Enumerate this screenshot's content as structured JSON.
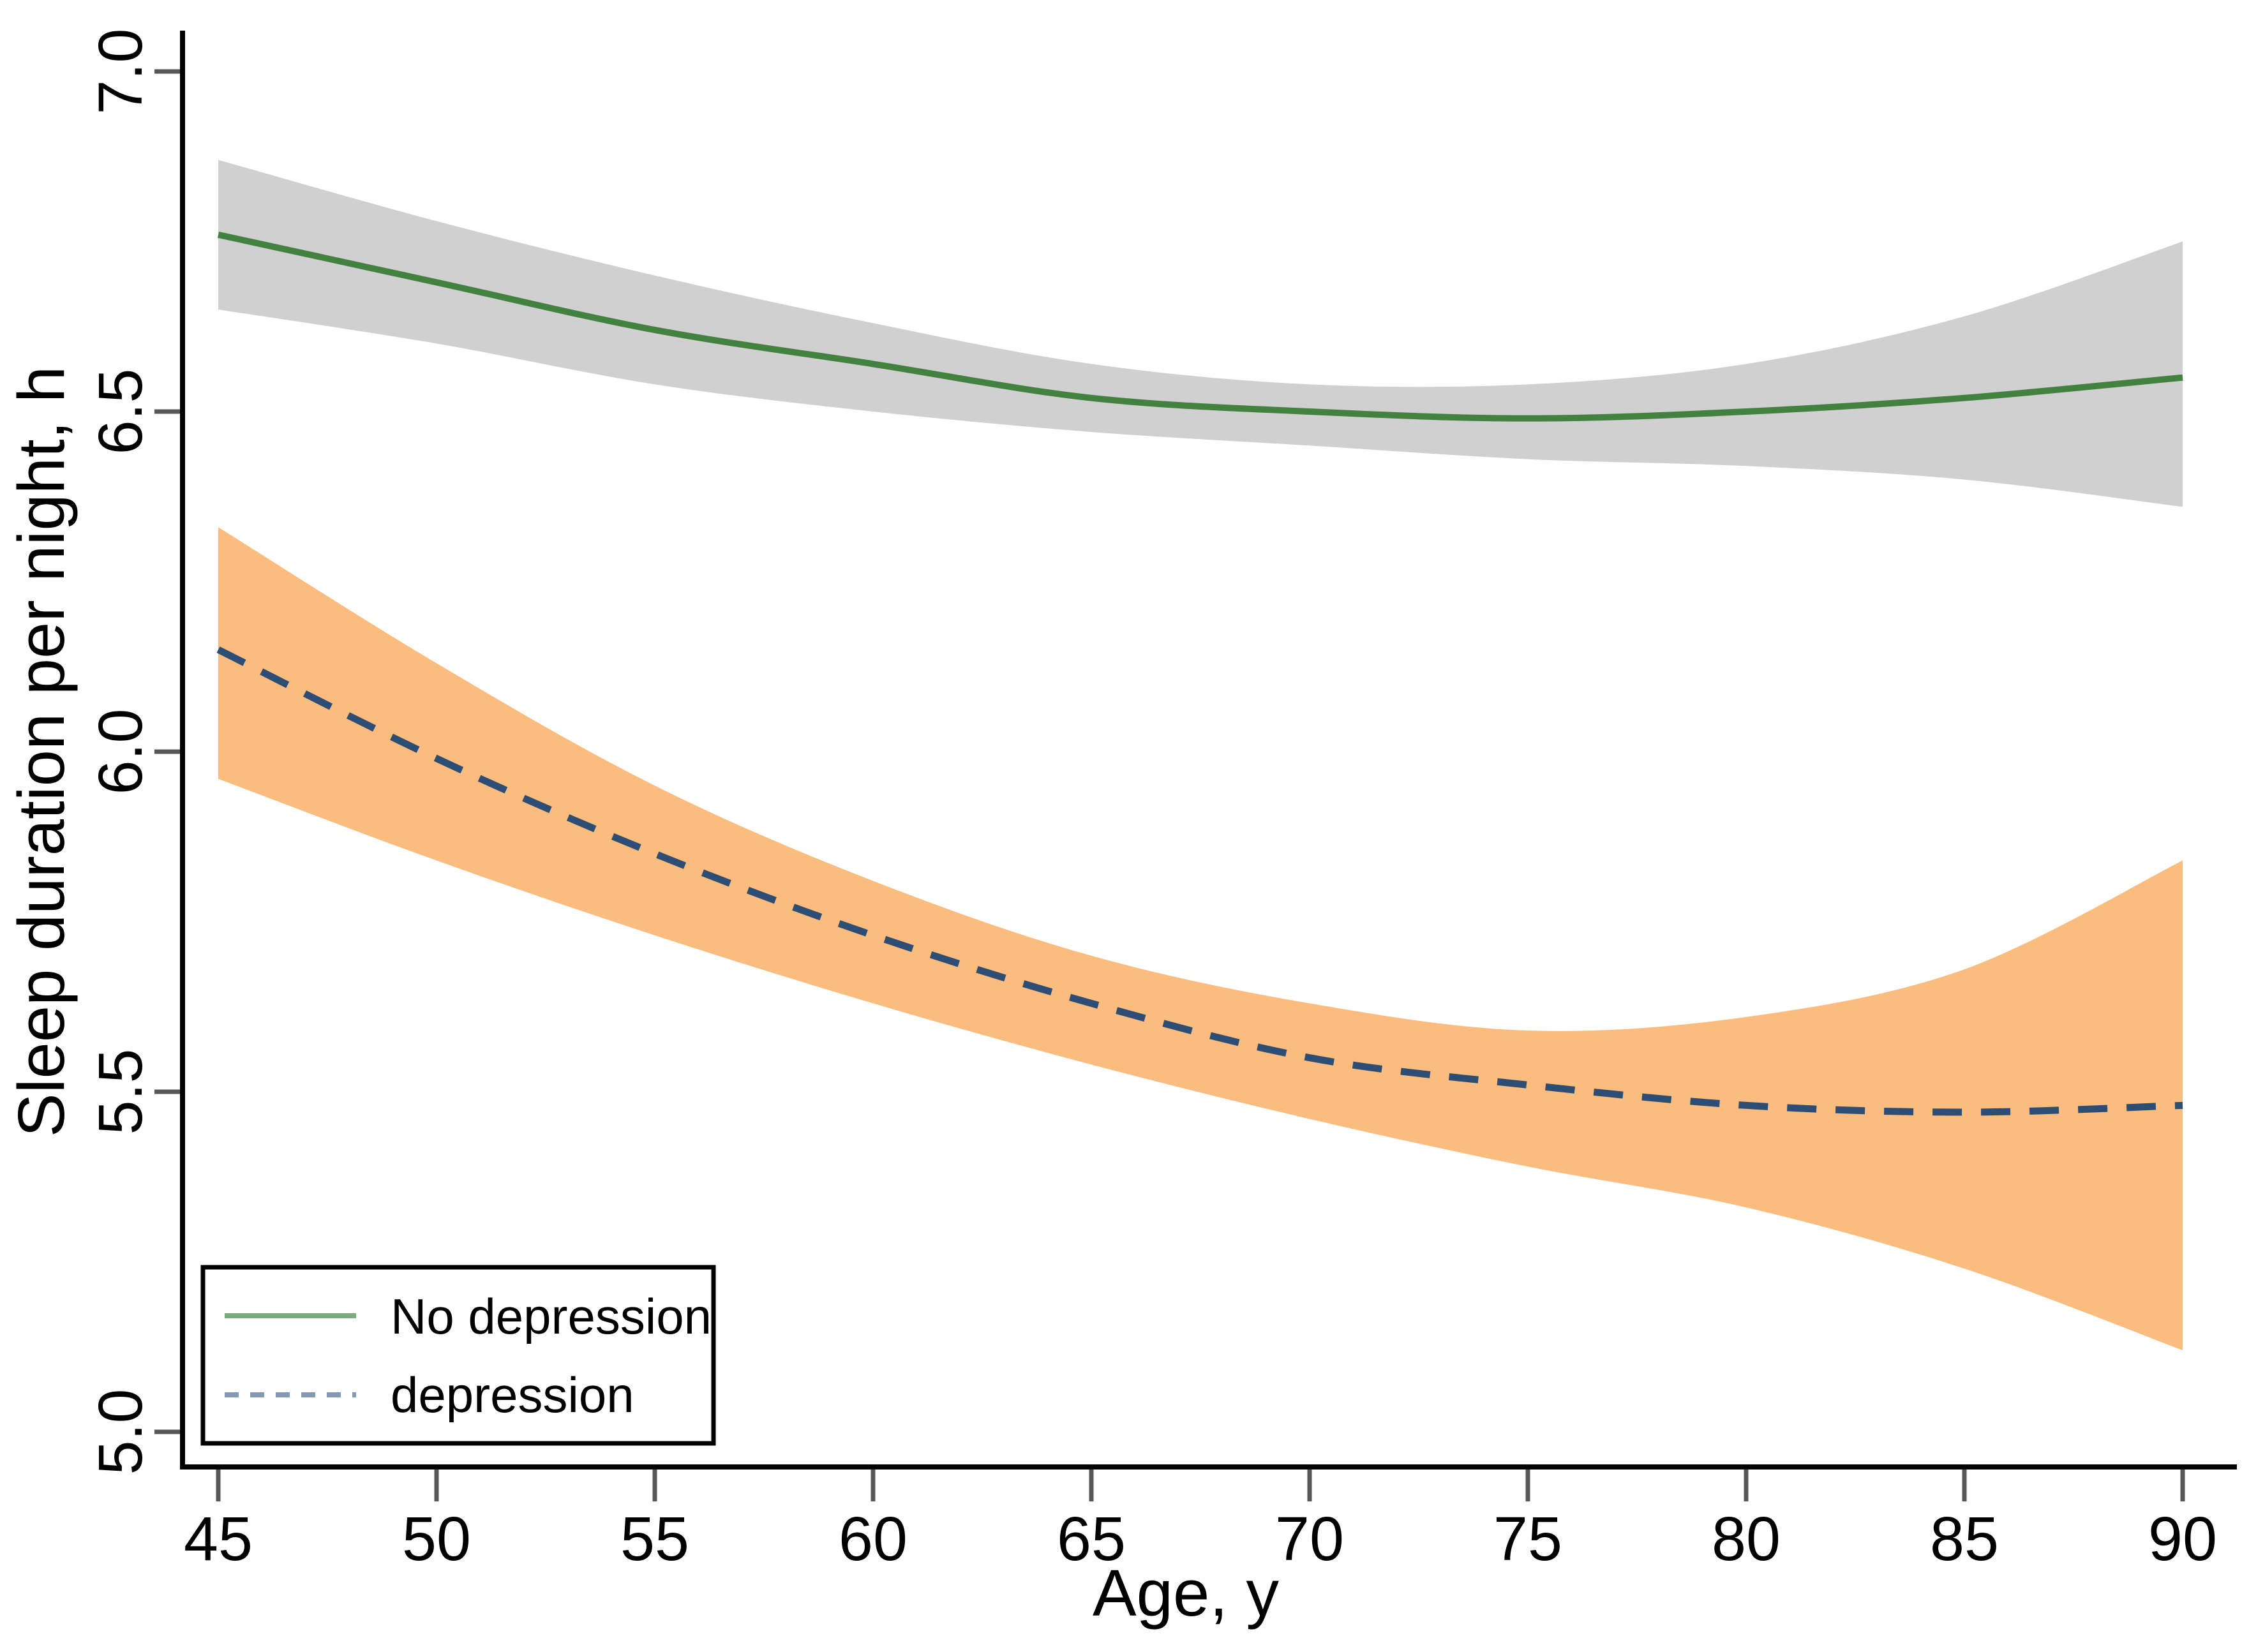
{
  "figure": {
    "background": "#ffffff",
    "axis_line_color": "#000000",
    "tick_mark_color": "#585858",
    "text_color": "#000000"
  },
  "chart_data": {
    "type": "line",
    "title": "",
    "xlabel": "Age, y",
    "ylabel": "Sleep duration per night, h",
    "xlim": [
      45,
      90
    ],
    "ylim": [
      5.0,
      7.0
    ],
    "grid": false,
    "legend_position": "bottom-left",
    "x": [
      45,
      50,
      55,
      60,
      65,
      70,
      75,
      80,
      85,
      90
    ],
    "x_tick_values": [
      45,
      50,
      55,
      60,
      65,
      70,
      75,
      80,
      85,
      90
    ],
    "x_tick_labels": [
      "45",
      "50",
      "55",
      "60",
      "65",
      "70",
      "75",
      "80",
      "85",
      "90"
    ],
    "y_tick_values": [
      7.0,
      6.5,
      6.0,
      5.5,
      5.0
    ],
    "y_tick_labels": [
      "7.0",
      "6.5",
      "6.0",
      "5.5",
      "5.0"
    ],
    "series": [
      {
        "name": "No depression",
        "style": "solid",
        "line_color": "#428140",
        "band_color": "#d0d0d0",
        "values": [
          6.76,
          6.69,
          6.62,
          6.57,
          6.52,
          6.5,
          6.49,
          6.5,
          6.52,
          6.55
        ],
        "ci_upper": [
          6.87,
          6.78,
          6.7,
          6.63,
          6.57,
          6.54,
          6.54,
          6.57,
          6.64,
          6.75
        ],
        "ci_lower": [
          6.65,
          6.6,
          6.54,
          6.5,
          6.47,
          6.45,
          6.43,
          6.42,
          6.4,
          6.36
        ]
      },
      {
        "name": "depression",
        "style": "dashed",
        "line_color": "#2e4d74",
        "band_color": "#fbbd7f",
        "values": [
          6.15,
          5.99,
          5.85,
          5.73,
          5.63,
          5.55,
          5.51,
          5.48,
          5.47,
          5.48
        ],
        "ci_upper": [
          6.33,
          6.13,
          5.95,
          5.81,
          5.7,
          5.63,
          5.59,
          5.61,
          5.68,
          5.84
        ],
        "ci_lower": [
          5.96,
          5.84,
          5.73,
          5.63,
          5.54,
          5.46,
          5.39,
          5.33,
          5.24,
          5.12
        ]
      }
    ]
  },
  "legend": {
    "items": [
      {
        "label": "No depression",
        "style": "solid",
        "swatch_color": "#7bab7c"
      },
      {
        "label": "depression",
        "style": "dashed",
        "swatch_color": "#8298b4"
      }
    ]
  }
}
